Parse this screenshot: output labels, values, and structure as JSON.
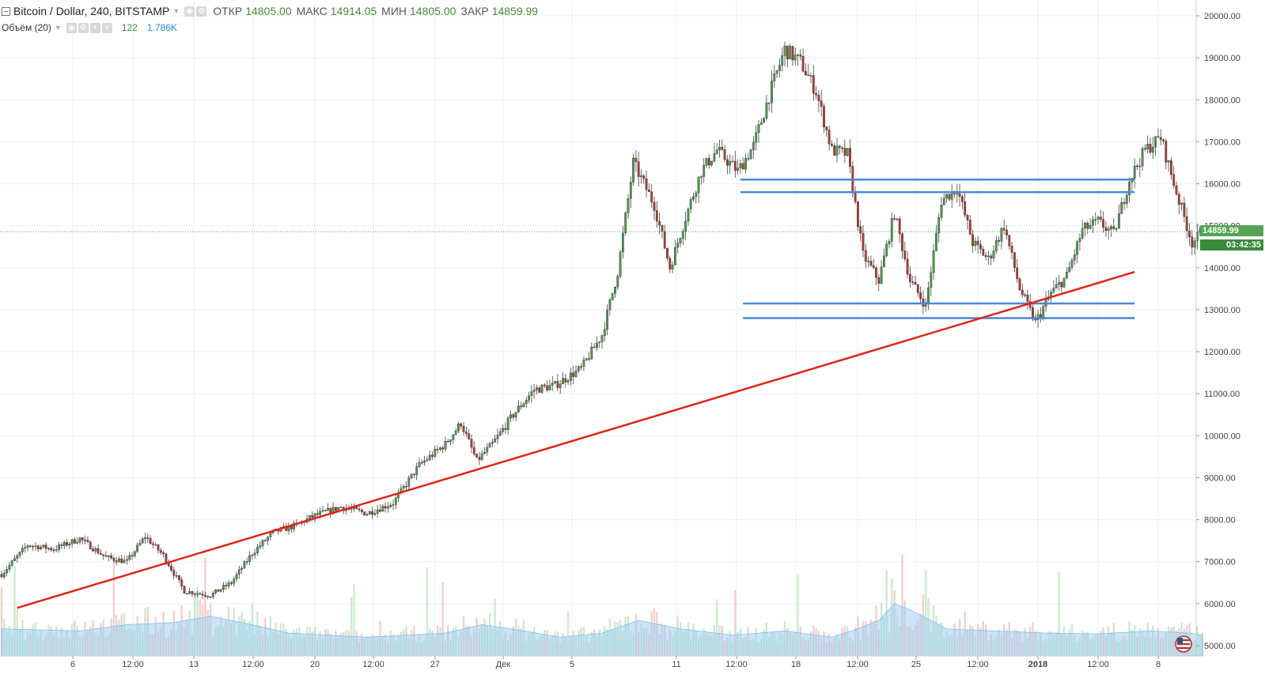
{
  "header": {
    "symbol": "Bitcoin / Dollar, 240, BITSTAMP",
    "open_label": "ОТКР",
    "open_value": "14805.00",
    "high_label": "МАКС",
    "high_value": "14914.05",
    "low_label": "МИН",
    "low_value": "14805.00",
    "close_label": "ЗАКР",
    "close_value": "14859.99",
    "volume_indicator": "Объём (20)",
    "volume_value": "122",
    "volume_ma_value": "1.786K"
  },
  "price_tags": {
    "last_price": "14859.99",
    "countdown": "03:42:35"
  },
  "colors": {
    "up": "#4e9a50",
    "down": "#b03a2e",
    "trendline": "#e0241c",
    "levels": "#4a88d8",
    "volume_ma_fill": "#9fd0f0",
    "grid": "#eef0f2",
    "tag_green": "#53a554",
    "tag_dark": "#3a8a3c"
  },
  "chart_data": {
    "type": "candlestick",
    "title": "Bitcoin / Dollar, 240, BITSTAMP",
    "ylim": [
      4800,
      20200
    ],
    "y_ticks": [
      "20000.00",
      "19000.00",
      "18000.00",
      "17000.00",
      "16000.00",
      "15000.00",
      "14000.00",
      "13000.00",
      "12000.00",
      "11000.00",
      "10000.00",
      "9000.00",
      "8000.00",
      "7000.00",
      "6000.00",
      "5000.00"
    ],
    "x_ticks": [
      "6",
      "12:00",
      "13",
      "12:00",
      "20",
      "12:00",
      "27",
      "Дек",
      "5",
      "11",
      "12:00",
      "18",
      "12:00",
      "25",
      "12:00",
      "2018",
      "12:00",
      "8"
    ],
    "grid": true,
    "price_anchors": [
      [
        0,
        6700
      ],
      [
        10,
        7400
      ],
      [
        20,
        7300
      ],
      [
        30,
        7550
      ],
      [
        40,
        7100
      ],
      [
        48,
        7000
      ],
      [
        55,
        7600
      ],
      [
        62,
        7150
      ],
      [
        70,
        6300
      ],
      [
        80,
        6200
      ],
      [
        88,
        6500
      ],
      [
        96,
        7200
      ],
      [
        104,
        7700
      ],
      [
        112,
        7850
      ],
      [
        120,
        8100
      ],
      [
        130,
        8300
      ],
      [
        140,
        8150
      ],
      [
        150,
        8400
      ],
      [
        160,
        9300
      ],
      [
        170,
        9800
      ],
      [
        176,
        10300
      ],
      [
        182,
        9400
      ],
      [
        188,
        9800
      ],
      [
        196,
        10500
      ],
      [
        204,
        11100
      ],
      [
        212,
        11200
      ],
      [
        222,
        11600
      ],
      [
        230,
        12400
      ],
      [
        236,
        13900
      ],
      [
        242,
        16500
      ],
      [
        250,
        15500
      ],
      [
        256,
        14000
      ],
      [
        262,
        15200
      ],
      [
        268,
        16300
      ],
      [
        274,
        16800
      ],
      [
        282,
        16300
      ],
      [
        288,
        16900
      ],
      [
        294,
        18100
      ],
      [
        300,
        19200
      ],
      [
        306,
        18900
      ],
      [
        312,
        18200
      ],
      [
        318,
        16800
      ],
      [
        324,
        16700
      ],
      [
        330,
        14300
      ],
      [
        336,
        13700
      ],
      [
        342,
        15300
      ],
      [
        348,
        13700
      ],
      [
        354,
        13100
      ],
      [
        360,
        15600
      ],
      [
        366,
        15900
      ],
      [
        372,
        14600
      ],
      [
        378,
        14200
      ],
      [
        384,
        15000
      ],
      [
        390,
        13500
      ],
      [
        396,
        12700
      ],
      [
        402,
        13400
      ],
      [
        408,
        13800
      ],
      [
        414,
        14900
      ],
      [
        420,
        15100
      ],
      [
        426,
        14800
      ],
      [
        432,
        16100
      ],
      [
        438,
        16800
      ],
      [
        444,
        17100
      ],
      [
        450,
        15800
      ],
      [
        456,
        14600
      ],
      [
        460,
        14860
      ]
    ],
    "volume_ma_anchors": [
      [
        0,
        5400
      ],
      [
        30,
        5350
      ],
      [
        48,
        5500
      ],
      [
        66,
        5550
      ],
      [
        80,
        5700
      ],
      [
        92,
        5550
      ],
      [
        110,
        5300
      ],
      [
        140,
        5200
      ],
      [
        170,
        5300
      ],
      [
        184,
        5500
      ],
      [
        200,
        5350
      ],
      [
        214,
        5200
      ],
      [
        230,
        5300
      ],
      [
        244,
        5600
      ],
      [
        260,
        5400
      ],
      [
        280,
        5250
      ],
      [
        300,
        5350
      ],
      [
        318,
        5200
      ],
      [
        328,
        5400
      ],
      [
        336,
        5600
      ],
      [
        342,
        6000
      ],
      [
        348,
        5850
      ],
      [
        356,
        5600
      ],
      [
        362,
        5400
      ],
      [
        380,
        5350
      ],
      [
        400,
        5300
      ],
      [
        420,
        5280
      ],
      [
        440,
        5350
      ],
      [
        455,
        5300
      ],
      [
        460,
        5250
      ]
    ],
    "trendline": {
      "points": [
        [
          6,
          5900
        ],
        [
          434,
          13900
        ]
      ]
    },
    "horizontal_levels": [
      {
        "value": 16100,
        "range": [
          283,
          434
        ]
      },
      {
        "value": 15800,
        "range": [
          283,
          434
        ]
      },
      {
        "value": 13150,
        "range": [
          284,
          434
        ]
      },
      {
        "value": 12800,
        "range": [
          284,
          434
        ]
      }
    ],
    "last_price": 14859.99
  }
}
